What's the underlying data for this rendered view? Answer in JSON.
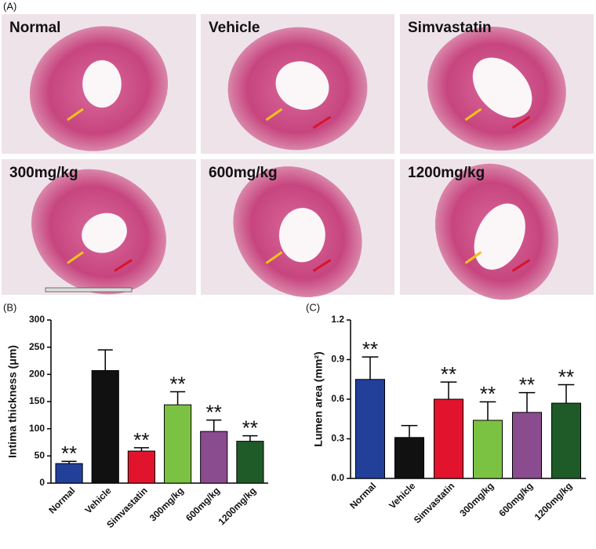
{
  "figure": {
    "panel_a": {
      "label": "(A)",
      "images": [
        "Normal",
        "Vehicle",
        "Simvastatin",
        "300mg/kg",
        "600mg/kg",
        "1200mg/kg"
      ]
    }
  },
  "chart_data": [
    {
      "type": "bar",
      "panel_label": "(B)",
      "y_label": "Intima thickness (μm)",
      "categories": [
        "Normal",
        "Vehicle",
        "Simvastatin",
        "300mg/kg",
        "600mg/kg",
        "1200mg/kg"
      ],
      "values": [
        36,
        207,
        59,
        144,
        95,
        77
      ],
      "errors": [
        4,
        38,
        6,
        24,
        21,
        10
      ],
      "significance": [
        "**",
        null,
        "**",
        "**",
        "**",
        "**"
      ],
      "colors": [
        "#22409a",
        "#111111",
        "#e2142d",
        "#7cc242",
        "#8b4c8f",
        "#1f5b28"
      ],
      "ylim": [
        0,
        300
      ],
      "yticks": [
        0,
        50,
        100,
        150,
        200,
        250,
        300
      ]
    },
    {
      "type": "bar",
      "panel_label": "(C)",
      "y_label": "Lumen area (mm²)",
      "categories": [
        "Normal",
        "Vehicle",
        "Simvastatin",
        "300mg/kg",
        "600mg/kg",
        "1200mg/kg"
      ],
      "values": [
        0.75,
        0.31,
        0.6,
        0.44,
        0.5,
        0.57
      ],
      "errors": [
        0.17,
        0.09,
        0.13,
        0.14,
        0.15,
        0.14
      ],
      "significance": [
        "**",
        null,
        "**",
        "**",
        "**",
        "**"
      ],
      "colors": [
        "#22409a",
        "#111111",
        "#e2142d",
        "#7cc242",
        "#8b4c8f",
        "#1f5b28"
      ],
      "ylim": [
        0,
        1.2
      ],
      "yticks": [
        {
          "value": 0,
          "label": "0.0"
        },
        0.3,
        0.6,
        0.9,
        1.2
      ]
    }
  ]
}
